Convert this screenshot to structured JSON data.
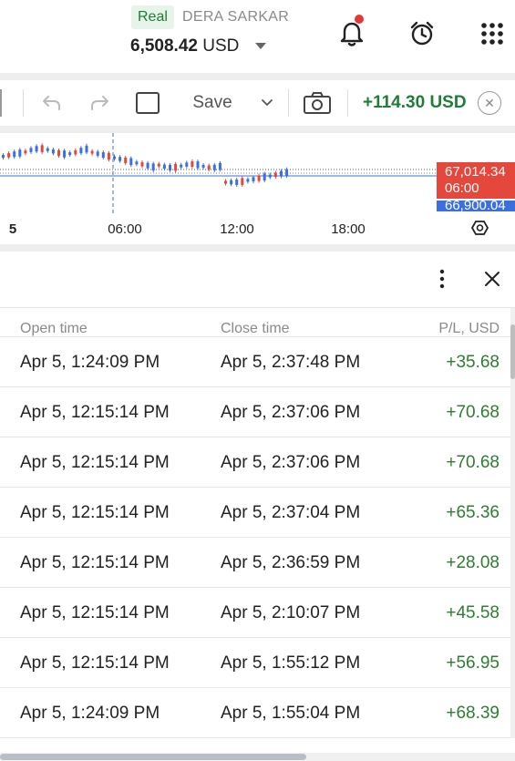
{
  "account": {
    "type": "Real",
    "name": "DERA SARKAR",
    "balance": "6,508.42",
    "currency": "USD"
  },
  "header_icons": [
    "bell-icon",
    "alarm-clock-icon",
    "apps-grid-icon"
  ],
  "toolbar": {
    "save_label": "Save",
    "total_pl": "+114.30 USD",
    "icons": [
      "undo-icon",
      "redo-icon",
      "checkbox-icon",
      "chevron-down-icon",
      "camera-icon",
      "close-icon"
    ]
  },
  "chart": {
    "x_ticks": [
      "5",
      "06:00",
      "12:00",
      "18:00"
    ],
    "price_label": "67,014.34",
    "price_time": "06:00",
    "price_label_2": "66,900.04",
    "colors": {
      "up": "#3b6fe0",
      "down": "#e5473d"
    }
  },
  "panel": {
    "columns": [
      "Open time",
      "Close time",
      "P/L, USD"
    ],
    "rows": [
      {
        "open": "Apr 5, 1:24:09 PM",
        "close": "Apr 5, 2:37:48 PM",
        "pl": "+35.68"
      },
      {
        "open": "Apr 5, 12:15:14 PM",
        "close": "Apr 5, 2:37:06 PM",
        "pl": "+70.68"
      },
      {
        "open": "Apr 5, 12:15:14 PM",
        "close": "Apr 5, 2:37:06 PM",
        "pl": "+70.68"
      },
      {
        "open": "Apr 5, 12:15:14 PM",
        "close": "Apr 5, 2:37:04 PM",
        "pl": "+65.36"
      },
      {
        "open": "Apr 5, 12:15:14 PM",
        "close": "Apr 5, 2:36:59 PM",
        "pl": "+28.08"
      },
      {
        "open": "Apr 5, 12:15:14 PM",
        "close": "Apr 5, 2:10:07 PM",
        "pl": "+45.58"
      },
      {
        "open": "Apr 5, 12:15:14 PM",
        "close": "Apr 5, 1:55:12 PM",
        "pl": "+56.95"
      },
      {
        "open": "Apr 5, 1:24:09 PM",
        "close": "Apr 5, 1:55:04 PM",
        "pl": "+68.39"
      }
    ],
    "colors": {
      "profit": "#2e7d32"
    }
  }
}
